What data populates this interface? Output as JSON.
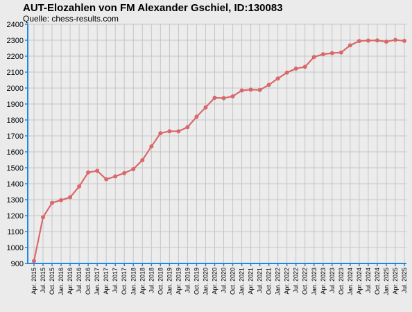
{
  "chart_data": {
    "type": "line",
    "title": "AUT-Elozahlen von FM Alexander Gschiel, ID:130083",
    "subtitle": "Quelle: chess-results.com",
    "xlabel": "",
    "ylabel": "",
    "ylim": [
      900,
      2400
    ],
    "yticks": [
      900,
      1000,
      1100,
      1200,
      1300,
      1400,
      1500,
      1600,
      1700,
      1800,
      1900,
      2000,
      2100,
      2200,
      2300,
      2400
    ],
    "grid": true,
    "legend": "none",
    "line_color": "#d9686a",
    "categories": [
      "Apr. 2015",
      "Jul. 2015",
      "Oct. 2015",
      "Jan. 2016",
      "Apr. 2016",
      "Jul. 2016",
      "Oct. 2016",
      "Jan. 2017",
      "Apr. 2017",
      "Jul. 2017",
      "Oct. 2017",
      "Jan. 2018",
      "Apr. 2018",
      "Jul. 2018",
      "Oct. 2018",
      "Jan. 2019",
      "Apr. 2019",
      "Jul. 2019",
      "Oct. 2019",
      "Jan. 2020",
      "Apr. 2020",
      "Jul. 2020",
      "Oct. 2020",
      "Jan. 2021",
      "Apr. 2021",
      "Jul. 2021",
      "Oct. 2021",
      "Jan. 2022",
      "Apr. 2022",
      "Jul. 2022",
      "Oct. 2022",
      "Jan. 2023",
      "Apr. 2023",
      "Jul. 2023",
      "Oct. 2023",
      "Jan. 2024",
      "Apr. 2024",
      "Jul. 2024",
      "Oct. 2024",
      "Jan. 2025",
      "Apr. 2025",
      "Jul. 2025"
    ],
    "series": [
      {
        "values": [
          915,
          1190,
          1280,
          1297,
          1315,
          1383,
          1471,
          1481,
          1428,
          1446,
          1467,
          1492,
          1548,
          1634,
          1717,
          1729,
          1729,
          1755,
          1820,
          1879,
          1939,
          1937,
          1948,
          1985,
          1990,
          1988,
          2020,
          2060,
          2097,
          2122,
          2133,
          2195,
          2212,
          2219,
          2223,
          2268,
          2295,
          2298,
          2299,
          2291,
          2302,
          2296
        ]
      }
    ]
  }
}
